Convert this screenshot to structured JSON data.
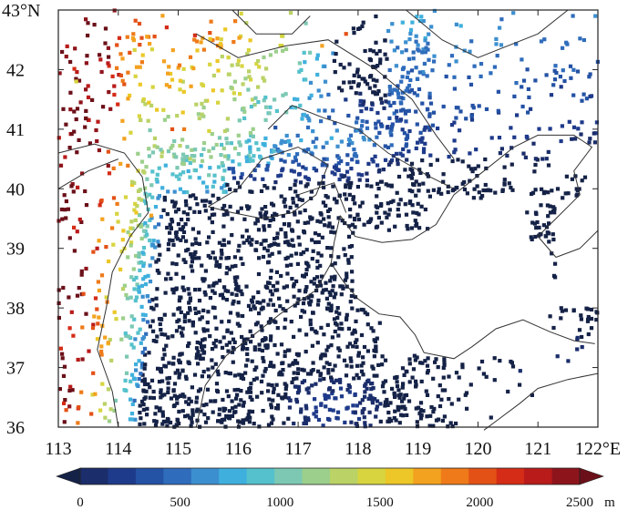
{
  "map": {
    "lon_range": [
      113,
      122
    ],
    "lat_range": [
      36,
      43
    ],
    "x_ticks": [
      "113",
      "114",
      "115",
      "116",
      "117",
      "118",
      "119",
      "120",
      "121",
      "122"
    ],
    "x_tick_values": [
      113,
      114,
      115,
      116,
      117,
      118,
      119,
      120,
      121,
      122
    ],
    "x_last_suffix": "°E",
    "y_ticks": [
      "36",
      "37",
      "38",
      "39",
      "40",
      "41",
      "42",
      "43"
    ],
    "y_tick_values": [
      36,
      37,
      38,
      39,
      40,
      41,
      42,
      43
    ],
    "y_last_suffix": "°N",
    "marker": "square",
    "quantity": "station elevation"
  },
  "colorbar": {
    "min": 0,
    "max": 2500,
    "step": 125,
    "labels": [
      "0",
      "500",
      "1000",
      "1500",
      "2000",
      "2500"
    ],
    "label_values": [
      0,
      500,
      1000,
      1500,
      2000,
      2500
    ],
    "unit": "m",
    "colors": [
      "#152247",
      "#1b2d6a",
      "#1e3a8a",
      "#2452a5",
      "#2f6cbb",
      "#3c8fcf",
      "#3fb0dd",
      "#55c1cc",
      "#7cc8b3",
      "#9ccf8b",
      "#bad266",
      "#d7d43f",
      "#ecc727",
      "#f3a21f",
      "#ee7a19",
      "#e35117",
      "#d52c17",
      "#b81b1a",
      "#8e141c",
      "#6b1019"
    ]
  }
}
